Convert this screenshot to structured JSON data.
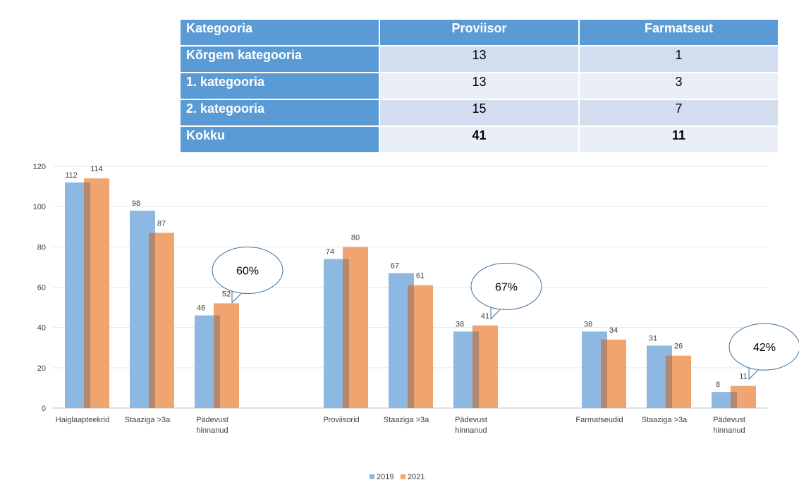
{
  "table": {
    "headers": [
      "Kategooria",
      "Proviisor",
      "Farmatseut"
    ],
    "rows": [
      {
        "label": "Kõrgem kategooria",
        "proviisor": "13",
        "farmatseut": "1"
      },
      {
        "label": "1. kategooria",
        "proviisor": "13",
        "farmatseut": "3"
      },
      {
        "label": "2. kategooria",
        "proviisor": "15",
        "farmatseut": "7"
      },
      {
        "label": "Kokku",
        "proviisor": "41",
        "farmatseut": "11"
      }
    ]
  },
  "chart_data": {
    "type": "bar",
    "categories": [
      [
        "Haiglaapteekrid"
      ],
      [
        "Staaziga >3a"
      ],
      [
        "Pädevust",
        "hinnanud"
      ],
      [
        "Proviisorid"
      ],
      [
        "Staaziga >3a"
      ],
      [
        "Pädevust",
        "hinnanud"
      ],
      [
        "Farmatseudid"
      ],
      [
        "Staaziga >3a"
      ],
      [
        "Pädevust",
        "hinnanud"
      ]
    ],
    "series": [
      {
        "name": "2019",
        "values": [
          112,
          98,
          46,
          74,
          67,
          38,
          38,
          31,
          8
        ]
      },
      {
        "name": "2021",
        "values": [
          114,
          87,
          52,
          80,
          61,
          41,
          34,
          26,
          11
        ]
      }
    ],
    "ylim": [
      0,
      120
    ],
    "yticks": [
      0,
      20,
      40,
      60,
      80,
      100,
      120
    ],
    "grid": true,
    "legend": "bottom-center",
    "colors": {
      "2019": "#8db8e2",
      "2021": "#f0a470",
      "overlap": "#b5886e"
    },
    "callouts": [
      {
        "text": "60%",
        "category_index": 2
      },
      {
        "text": "67%",
        "category_index": 5
      },
      {
        "text": "42%",
        "category_index": 8
      }
    ]
  }
}
